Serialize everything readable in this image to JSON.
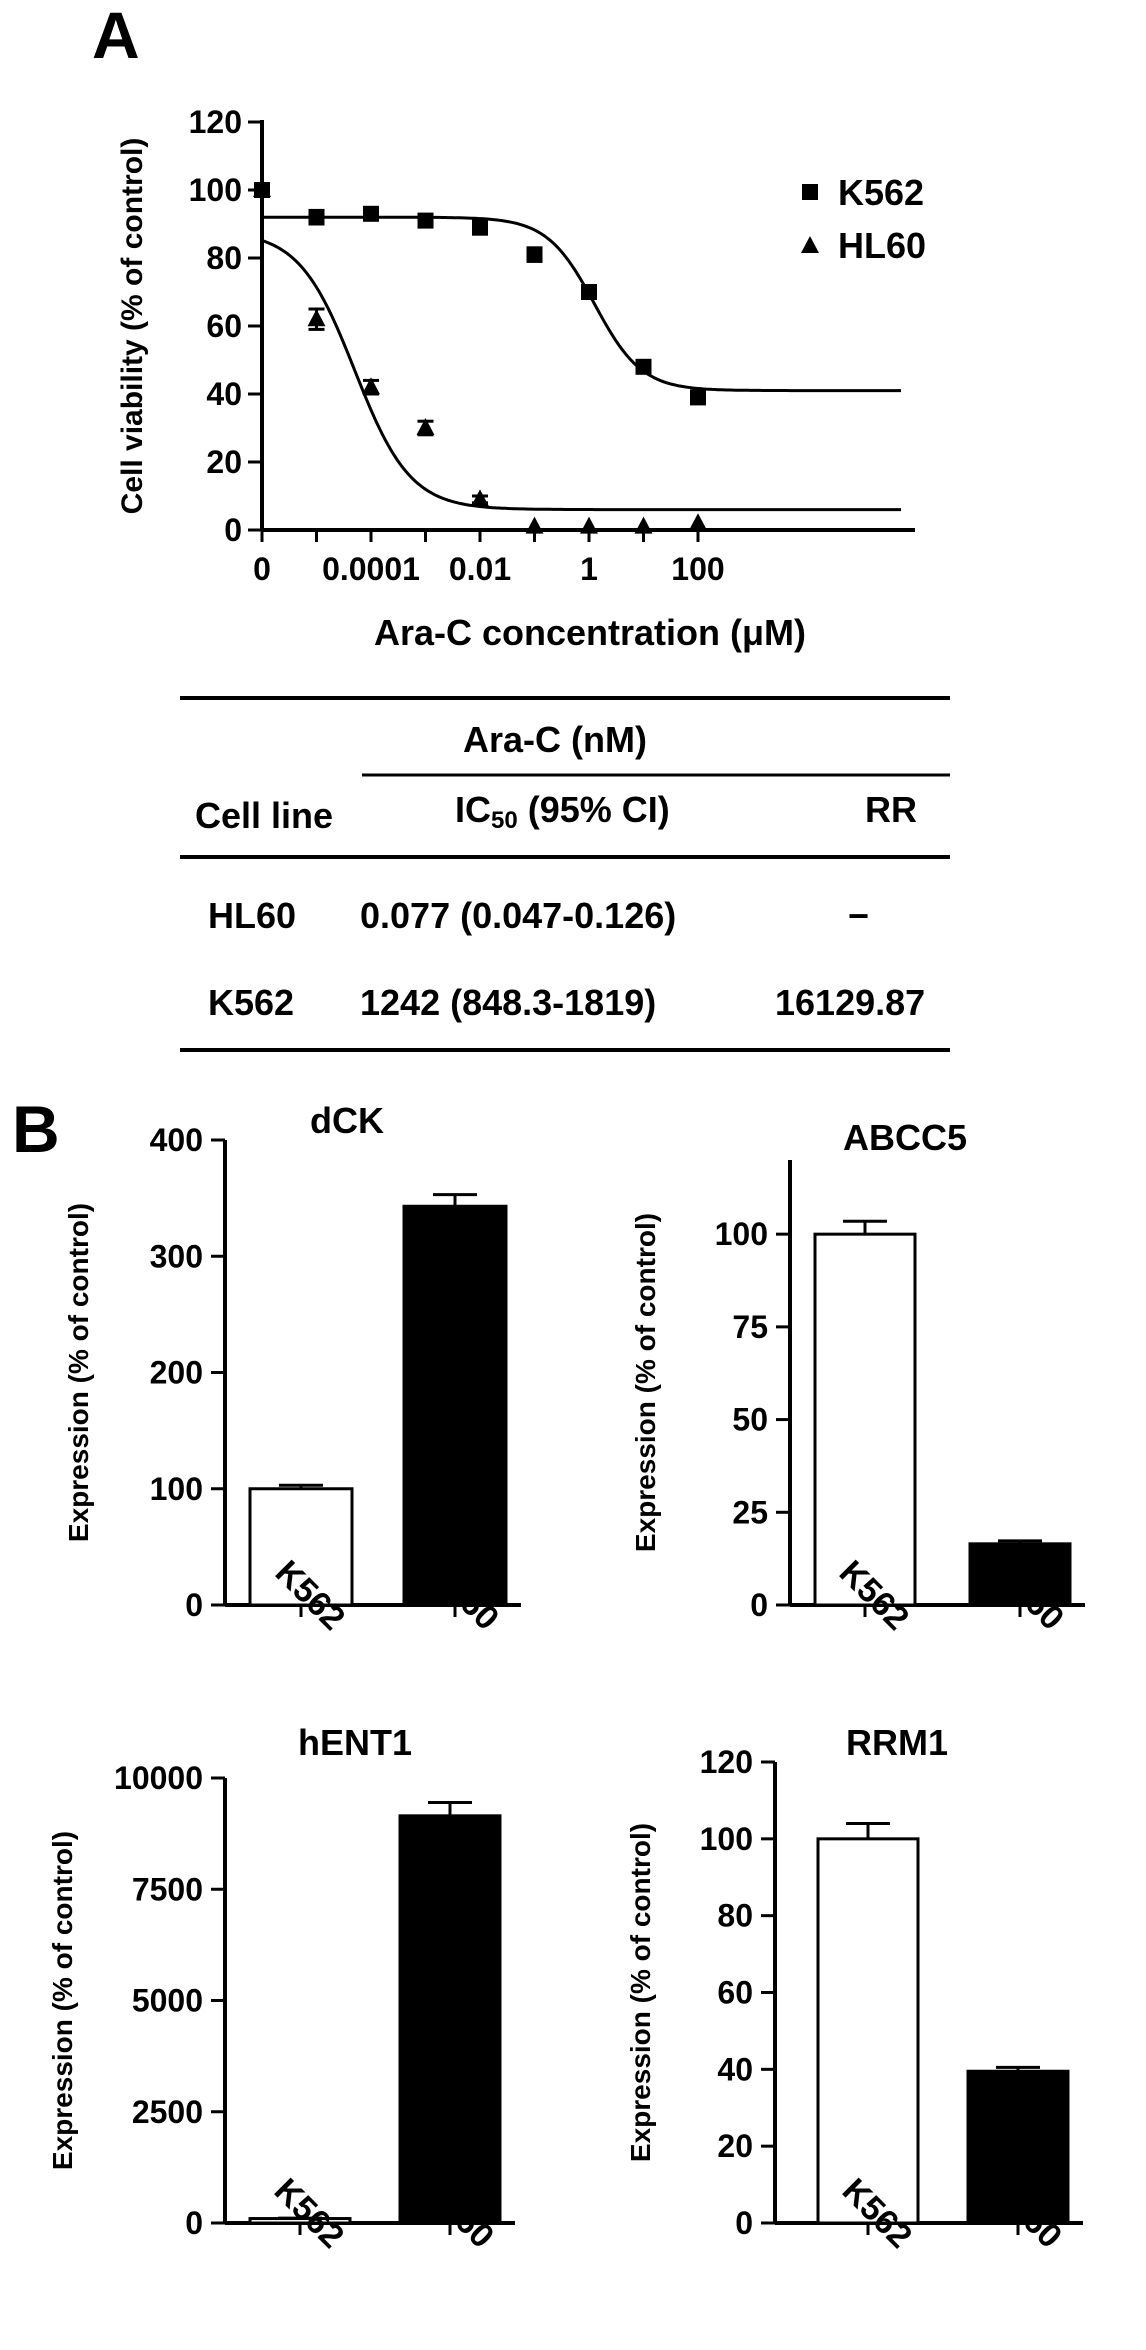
{
  "panels": {
    "a": "A",
    "b": "B"
  },
  "chart_data": [
    {
      "type": "scatter",
      "panel": "A",
      "title": "",
      "xlabel": "Ara-C concentration (μM)",
      "ylabel": "Cell viability (% of control)",
      "xscale": "log",
      "x_tick_labels": [
        "0",
        "0.0001",
        "0.01",
        "1",
        "100"
      ],
      "x_tick_values": [
        0,
        0.0001,
        0.01,
        1,
        100
      ],
      "y_ticks": [
        0,
        20,
        40,
        60,
        80,
        100,
        120
      ],
      "ylim": [
        0,
        120
      ],
      "legend_position": "top-right",
      "series": [
        {
          "name": "K562",
          "marker": "square",
          "x": [
            0,
            1e-05,
            0.0001,
            0.001,
            0.01,
            0.1,
            1,
            10,
            100
          ],
          "y": [
            100,
            92,
            93,
            91,
            89,
            81,
            70,
            48,
            39
          ],
          "err": [
            1,
            2,
            1,
            1,
            2,
            2,
            1,
            1,
            1
          ],
          "fit": {
            "top": 92,
            "bottom": 41,
            "log_ec50": 0.1,
            "hill": 1.0
          }
        },
        {
          "name": "HL60",
          "marker": "triangle",
          "x": [
            0,
            1e-05,
            0.0001,
            0.001,
            0.01,
            0.1,
            1,
            10,
            100
          ],
          "y": [
            100,
            62,
            42,
            30,
            9,
            1,
            1,
            1,
            2
          ],
          "err": [
            0,
            3,
            2,
            2,
            1,
            0,
            0,
            0,
            0
          ],
          "fit": {
            "top": 88,
            "bottom": 6,
            "log_ec50": -4.3,
            "hill": 0.85
          }
        }
      ]
    },
    {
      "type": "bar",
      "panel": "B",
      "title": "dCK",
      "ylabel": "Expression (% of control)",
      "categories": [
        "K562",
        "HL60"
      ],
      "values": [
        100,
        343
      ],
      "errors": [
        3,
        10
      ],
      "fills": [
        "#ffffff",
        "#000000"
      ],
      "ylim": [
        0,
        400
      ],
      "y_ticks": [
        0,
        100,
        200,
        300,
        400
      ]
    },
    {
      "type": "bar",
      "panel": "B",
      "title": "ABCC5",
      "ylabel": "Expression (% of control)",
      "categories": [
        "K562",
        "HL60"
      ],
      "values": [
        100,
        16.5
      ],
      "errors": [
        3.5,
        0.8
      ],
      "fills": [
        "#ffffff",
        "#000000"
      ],
      "ylim": [
        0,
        120
      ],
      "y_ticks": [
        0,
        25,
        50,
        75,
        100
      ]
    },
    {
      "type": "bar",
      "panel": "B",
      "title": "hENT1",
      "ylabel": "Expression (% of control)",
      "categories": [
        "K562",
        "HL60"
      ],
      "values": [
        100,
        9150
      ],
      "errors": [
        10,
        300
      ],
      "fills": [
        "#ffffff",
        "#000000"
      ],
      "ylim": [
        0,
        10000
      ],
      "y_ticks": [
        0,
        2500,
        5000,
        7500,
        10000
      ]
    },
    {
      "type": "bar",
      "panel": "B",
      "title": "RRM1",
      "ylabel": "Expression (% of control)",
      "categories": [
        "K562",
        "HL60"
      ],
      "values": [
        100,
        39.5
      ],
      "errors": [
        4,
        1
      ],
      "fills": [
        "#ffffff",
        "#000000"
      ],
      "ylim": [
        0,
        120
      ],
      "y_ticks": [
        0,
        20,
        40,
        60,
        80,
        100,
        120
      ]
    }
  ],
  "table": {
    "group_header": "Ara-C (nM)",
    "col_cell_line": "Cell line",
    "col_ic50": "IC",
    "col_ic50_sub": "50",
    "col_ic50_suffix": " (95% CI)",
    "col_rr": "RR",
    "rows": [
      {
        "cell_line": "HL60",
        "ic50": "0.077 (0.047-0.126)",
        "rr": "−"
      },
      {
        "cell_line": "K562",
        "ic50": "1242 (848.3-1819)",
        "rr": "16129.87"
      }
    ]
  }
}
